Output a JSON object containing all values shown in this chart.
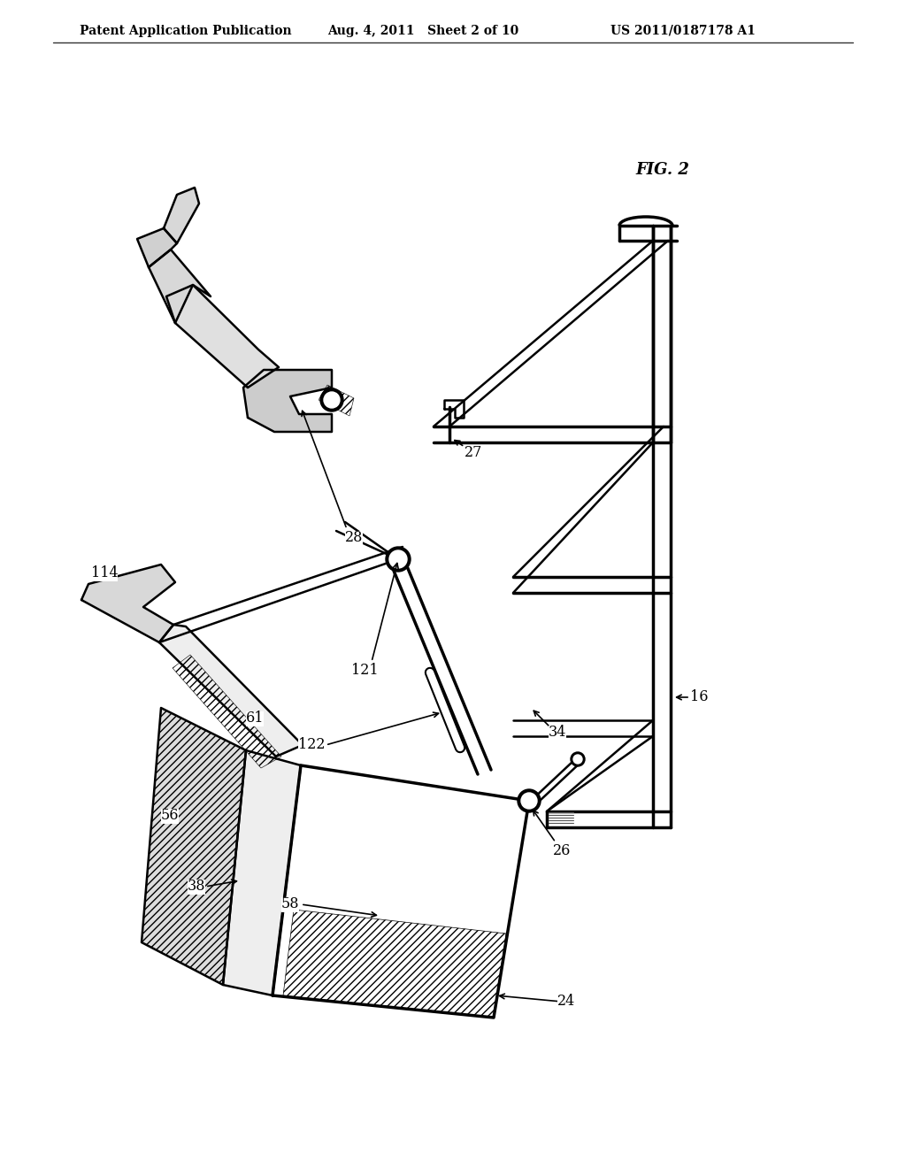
{
  "bg_color": "#ffffff",
  "line_color": "#000000",
  "header_left": "Patent Application Publication",
  "header_center": "Aug. 4, 2011   Sheet 2 of 10",
  "header_right": "US 2011/0187178 A1",
  "fig_label": "FIG. 2"
}
